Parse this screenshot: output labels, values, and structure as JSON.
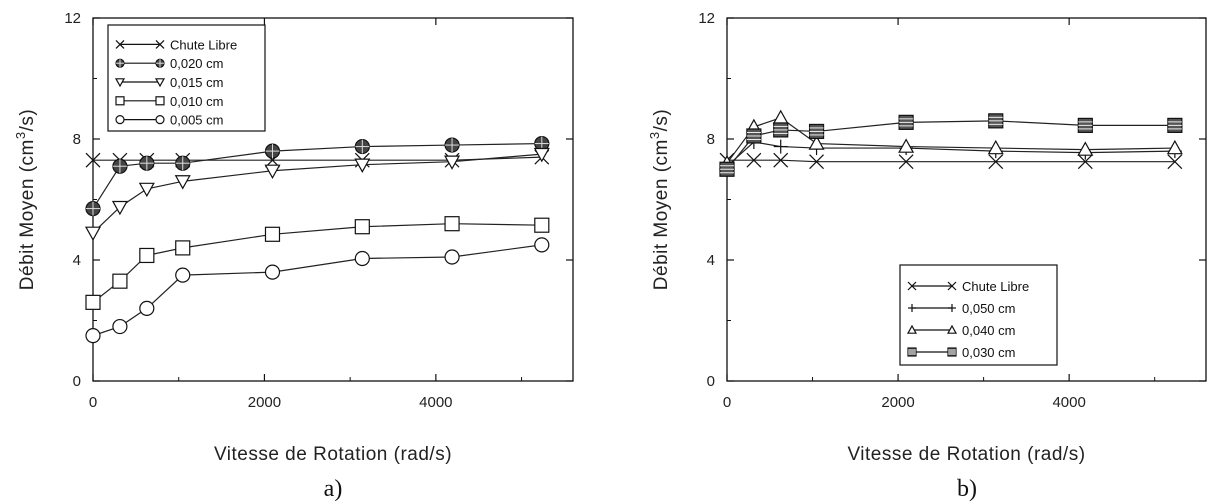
{
  "chart_data": [
    {
      "type": "line",
      "panel_label": "a)",
      "xlabel": "Vitesse de Rotation (rad/s)",
      "ylabel_main": "Débit Moyen (cm",
      "ylabel_sup": "3",
      "ylabel_end": "/s)",
      "xlim": [
        0,
        5600
      ],
      "ylim": [
        0,
        12
      ],
      "xticks": [
        0,
        2000,
        4000
      ],
      "yticks": [
        0,
        4,
        8,
        12
      ],
      "legend_position": "top-left",
      "x": [
        0,
        314,
        628,
        1047,
        2094,
        3142,
        4189,
        5236
      ],
      "series": [
        {
          "name": "Chute Libre",
          "marker": "x",
          "values": [
            7.3,
            7.3,
            7.3,
            7.3,
            7.3,
            7.3,
            7.3,
            7.4
          ]
        },
        {
          "name": "0,020 cm",
          "marker": "filled-circle",
          "values": [
            5.7,
            7.1,
            7.2,
            7.2,
            7.6,
            7.75,
            7.8,
            7.85
          ]
        },
        {
          "name": "0,015 cm",
          "marker": "triangle-down",
          "values": [
            4.9,
            5.75,
            6.35,
            6.6,
            6.95,
            7.15,
            7.25,
            7.5
          ]
        },
        {
          "name": "0,010 cm",
          "marker": "square",
          "values": [
            2.6,
            3.3,
            4.15,
            4.4,
            4.85,
            5.1,
            5.2,
            5.15
          ]
        },
        {
          "name": "0,005 cm",
          "marker": "circle",
          "values": [
            1.5,
            1.8,
            2.4,
            3.5,
            3.6,
            4.05,
            4.1,
            4.5
          ]
        }
      ]
    },
    {
      "type": "line",
      "panel_label": "b)",
      "xlabel": "Vitesse de Rotation (rad/s)",
      "ylabel_main": "Débit Moyen (cm",
      "ylabel_sup": "3",
      "ylabel_end": "/s)",
      "xlim": [
        0,
        5600
      ],
      "ylim": [
        0,
        12
      ],
      "xticks": [
        0,
        2000,
        4000
      ],
      "yticks": [
        0,
        4,
        8,
        12
      ],
      "legend_position": "bottom-right",
      "x": [
        0,
        314,
        628,
        1047,
        2094,
        3142,
        4189,
        5236
      ],
      "series": [
        {
          "name": "Chute Libre",
          "marker": "x",
          "values": [
            7.3,
            7.3,
            7.3,
            7.25,
            7.25,
            7.25,
            7.25,
            7.25
          ]
        },
        {
          "name": "0,050 cm",
          "marker": "plus",
          "values": [
            7.1,
            7.9,
            7.75,
            7.7,
            7.7,
            7.6,
            7.55,
            7.6
          ]
        },
        {
          "name": "0,040 cm",
          "marker": "triangle-up",
          "values": [
            7.2,
            8.4,
            8.7,
            7.85,
            7.75,
            7.7,
            7.65,
            7.7
          ]
        },
        {
          "name": "0,030 cm",
          "marker": "barred-square",
          "values": [
            7.0,
            8.1,
            8.3,
            8.25,
            8.55,
            8.6,
            8.45,
            8.45
          ]
        }
      ]
    }
  ]
}
